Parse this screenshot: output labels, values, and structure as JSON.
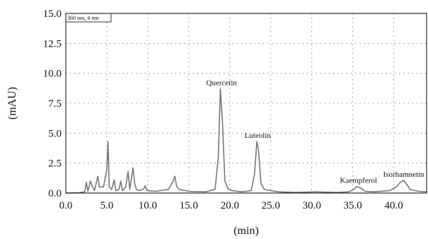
{
  "chart_data": {
    "type": "line",
    "ylabel": "(mAU)",
    "xlabel": "(min)",
    "legend_text": "360 nm, 4 nm",
    "xlim": [
      0,
      44
    ],
    "ylim": [
      0,
      15
    ],
    "x_ticks": [
      "0.0",
      "5.0",
      "10.0",
      "15.0",
      "20.0",
      "25.0",
      "30.0",
      "35.0",
      "40.0"
    ],
    "x_tick_values": [
      0,
      5,
      10,
      15,
      20,
      25,
      30,
      35,
      40
    ],
    "y_ticks": [
      "0.0",
      "2.5",
      "5.0",
      "7.5",
      "10.0",
      "12.5",
      "15.0"
    ],
    "y_tick_values": [
      0,
      2.5,
      5,
      7.5,
      10,
      12.5,
      15
    ],
    "grid": true,
    "line_color": "#777777",
    "series": [
      {
        "points": [
          [
            0,
            0.0
          ],
          [
            1.5,
            0.02
          ],
          [
            2.3,
            0.1
          ],
          [
            2.5,
            0.9
          ],
          [
            2.7,
            0.15
          ],
          [
            3.0,
            1.0
          ],
          [
            3.2,
            0.6
          ],
          [
            3.5,
            0.2
          ],
          [
            3.9,
            1.4
          ],
          [
            4.1,
            0.5
          ],
          [
            4.6,
            0.5
          ],
          [
            5.0,
            2.0
          ],
          [
            5.15,
            4.3
          ],
          [
            5.3,
            0.5
          ],
          [
            5.6,
            0.3
          ],
          [
            5.9,
            1.1
          ],
          [
            6.1,
            0.2
          ],
          [
            6.5,
            0.3
          ],
          [
            6.7,
            1.0
          ],
          [
            6.9,
            0.2
          ],
          [
            7.3,
            0.5
          ],
          [
            7.6,
            1.8
          ],
          [
            7.8,
            0.3
          ],
          [
            8.0,
            1.2
          ],
          [
            8.2,
            2.1
          ],
          [
            8.4,
            0.8
          ],
          [
            8.6,
            0.3
          ],
          [
            9.0,
            0.2
          ],
          [
            9.5,
            0.35
          ],
          [
            9.7,
            0.6
          ],
          [
            9.9,
            0.2
          ],
          [
            11,
            0.15
          ],
          [
            12.5,
            0.3
          ],
          [
            13.1,
            1.0
          ],
          [
            13.3,
            1.4
          ],
          [
            13.5,
            0.6
          ],
          [
            13.8,
            0.3
          ],
          [
            15,
            0.15
          ],
          [
            17,
            0.1
          ],
          [
            18.2,
            0.3
          ],
          [
            18.6,
            3.0
          ],
          [
            18.85,
            8.7
          ],
          [
            19.1,
            6.0
          ],
          [
            19.4,
            1.0
          ],
          [
            19.8,
            0.35
          ],
          [
            20.3,
            0.2
          ],
          [
            21.5,
            0.1
          ],
          [
            22.6,
            0.2
          ],
          [
            23.0,
            1.5
          ],
          [
            23.3,
            4.3
          ],
          [
            23.5,
            3.6
          ],
          [
            23.8,
            0.8
          ],
          [
            24.2,
            0.3
          ],
          [
            25,
            0.2
          ],
          [
            26,
            0.1
          ],
          [
            28,
            0.05
          ],
          [
            30.5,
            0.1
          ],
          [
            33,
            0.05
          ],
          [
            34.5,
            0.1
          ],
          [
            35.1,
            0.3
          ],
          [
            35.5,
            0.55
          ],
          [
            36.0,
            0.4
          ],
          [
            36.5,
            0.15
          ],
          [
            37.5,
            0.1
          ],
          [
            39.5,
            0.2
          ],
          [
            40.3,
            0.5
          ],
          [
            40.8,
            0.9
          ],
          [
            41.2,
            1.05
          ],
          [
            41.6,
            0.7
          ],
          [
            42.0,
            0.3
          ],
          [
            43,
            0.15
          ],
          [
            44,
            0.1
          ]
        ]
      }
    ],
    "annotations": [
      {
        "text": "Quercetin",
        "x": 19.0,
        "y": 8.7
      },
      {
        "text": "Luteolin",
        "x": 23.4,
        "y": 4.3
      },
      {
        "text": "Kaempferol",
        "x": 35.7,
        "y": 0.55
      },
      {
        "text": "Isorhamnetin",
        "x": 41.2,
        "y": 1.05
      }
    ]
  }
}
